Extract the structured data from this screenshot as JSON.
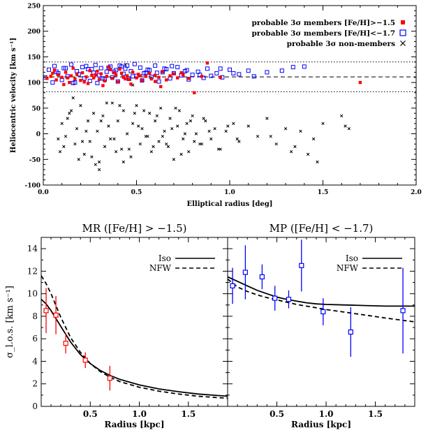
{
  "chart_data": [
    {
      "type": "scatter",
      "title": "",
      "xlabel": "Elliptical radius [deg]",
      "ylabel": "Heliocentric velocity [km s⁻¹]",
      "xlim": [
        0,
        2.0
      ],
      "ylim": [
        -100,
        250
      ],
      "xticks": [
        "0.0",
        "0.5",
        "1.0",
        "1.5",
        "2.0"
      ],
      "yticks": [
        "-100",
        "-50",
        "0",
        "50",
        "100",
        "150",
        "200",
        "250"
      ],
      "legend_position": "top-right",
      "legend": [
        {
          "label": "probable 3σ members [Fe/H]>−1.5",
          "marker": "filled-square",
          "color": "#ff0000"
        },
        {
          "label": "probable 3σ members [Fe/H]<−1.7",
          "marker": "open-square",
          "color": "#0000ff"
        },
        {
          "label": "probable 3σ non-members",
          "marker": "cross",
          "color": "#000000"
        }
      ],
      "reference_lines": [
        {
          "y": 140,
          "style": "dotted"
        },
        {
          "y": 111,
          "style": "dashed"
        },
        {
          "y": 82,
          "style": "dotted"
        }
      ],
      "series": [
        {
          "name": "probable 3σ members [Fe/H]>−1.5",
          "color": "#ff0000",
          "x": [
            0.02,
            0.04,
            0.05,
            0.07,
            0.08,
            0.1,
            0.12,
            0.14,
            0.15,
            0.17,
            0.18,
            0.2,
            0.21,
            0.23,
            0.24,
            0.26,
            0.27,
            0.29,
            0.3,
            0.31,
            0.33,
            0.34,
            0.36,
            0.37,
            0.39,
            0.4,
            0.42,
            0.43,
            0.45,
            0.46,
            0.48,
            0.5,
            0.51,
            0.53,
            0.55,
            0.57,
            0.58,
            0.6,
            0.62,
            0.64,
            0.66,
            0.68,
            0.7,
            0.72,
            0.75,
            0.78,
            0.81,
            0.85,
            0.88,
            0.95,
            0.06,
            0.11,
            0.16,
            0.22,
            0.28,
            0.32,
            0.38,
            0.44,
            0.52,
            0.6,
            0.35,
            0.25,
            0.47,
            0.13,
            0.41,
            1.7,
            0.63,
            0.74
          ],
          "y": [
            108,
            112,
            118,
            105,
            115,
            110,
            120,
            100,
            113,
            107,
            116,
            104,
            119,
            111,
            98,
            114,
            109,
            122,
            106,
            117,
            103,
            112,
            125,
            108,
            115,
            101,
            118,
            110,
            113,
            106,
            120,
            109,
            116,
            104,
            112,
            118,
            107,
            114,
            110,
            121,
            105,
            113,
            117,
            109,
            115,
            108,
            80,
            112,
            138,
            110,
            124,
            96,
            128,
            101,
            115,
            94,
            119,
            107,
            113,
            102,
            130,
            123,
            97,
            109,
            126,
            100,
            92,
            119
          ]
        },
        {
          "name": "probable 3σ members [Fe/H]<−1.7",
          "color": "#0000ff",
          "x": [
            0.01,
            0.03,
            0.05,
            0.06,
            0.08,
            0.1,
            0.11,
            0.13,
            0.15,
            0.16,
            0.18,
            0.19,
            0.21,
            0.22,
            0.24,
            0.25,
            0.27,
            0.28,
            0.3,
            0.31,
            0.33,
            0.34,
            0.36,
            0.37,
            0.39,
            0.4,
            0.41,
            0.43,
            0.44,
            0.46,
            0.47,
            0.49,
            0.5,
            0.52,
            0.53,
            0.55,
            0.56,
            0.58,
            0.6,
            0.62,
            0.64,
            0.66,
            0.68,
            0.7,
            0.72,
            0.74,
            0.76,
            0.78,
            0.8,
            0.83,
            0.86,
            0.88,
            0.9,
            0.93,
            0.96,
            1.0,
            1.05,
            1.1,
            1.13,
            1.2,
            1.28,
            1.34,
            1.4,
            0.12,
            0.23,
            0.35,
            0.45,
            0.57,
            0.65,
            0.77,
            0.84,
            0.07,
            0.29,
            0.42,
            0.54,
            0.69,
            0.95,
            1.02,
            0.32,
            0.38,
            0.48,
            0.61,
            0.17,
            0.26
          ],
          "y": [
            110,
            125,
            100,
            132,
            118,
            105,
            128,
            112,
            135,
            99,
            122,
            116,
            130,
            108,
            126,
            103,
            119,
            134,
            114,
            128,
            106,
            121,
            131,
            110,
            124,
            102,
            133,
            117,
            127,
            107,
            122,
            136,
            113,
            129,
            104,
            119,
            125,
            111,
            133,
            102,
            120,
            126,
            108,
            118,
            130,
            114,
            122,
            106,
            115,
            121,
            109,
            127,
            113,
            118,
            110,
            125,
            116,
            123,
            112,
            120,
            123,
            130,
            131,
            128,
            132,
            129,
            133,
            124,
            127,
            124,
            115,
            121,
            99,
            131,
            118,
            132,
            127,
            118,
            108,
            121,
            112,
            119,
            100,
            126
          ]
        },
        {
          "name": "probable 3σ non-members",
          "color": "#000000",
          "x": [
            0.08,
            0.09,
            0.1,
            0.12,
            0.13,
            0.15,
            0.17,
            0.18,
            0.2,
            0.22,
            0.24,
            0.25,
            0.27,
            0.29,
            0.3,
            0.32,
            0.33,
            0.35,
            0.37,
            0.38,
            0.4,
            0.42,
            0.43,
            0.45,
            0.47,
            0.48,
            0.5,
            0.52,
            0.53,
            0.55,
            0.57,
            0.58,
            0.6,
            0.62,
            0.63,
            0.65,
            0.67,
            0.68,
            0.7,
            0.72,
            0.73,
            0.75,
            0.77,
            0.78,
            0.8,
            0.82,
            0.85,
            0.87,
            0.9,
            0.92,
            0.95,
            0.98,
            1.02,
            1.05,
            1.1,
            1.15,
            1.2,
            1.25,
            1.3,
            1.35,
            1.38,
            1.42,
            1.45,
            1.5,
            1.6,
            1.62,
            1.64,
            0.44,
            0.48,
            0.11,
            0.14,
            0.26,
            0.31,
            0.36,
            0.41,
            0.46,
            0.51,
            0.56,
            0.61,
            0.66,
            0.71,
            0.76,
            0.81,
            0.86,
            0.34,
            0.39,
            0.19,
            0.23,
            0.28,
            0.54,
            0.59,
            0.64,
            0.69,
            0.74,
            0.79,
            0.84,
            0.89,
            0.94,
            0.99,
            1.04,
            0.16,
            0.21,
            0.49,
            0.43,
            1.22,
            1.33,
            1.47,
            0.3
          ],
          "y": [
            -10,
            -35,
            20,
            -5,
            30,
            45,
            -20,
            10,
            55,
            -40,
            25,
            -15,
            40,
            5,
            -55,
            35,
            -25,
            15,
            60,
            -10,
            25,
            -30,
            45,
            0,
            -45,
            20,
            55,
            -20,
            10,
            -5,
            40,
            -35,
            25,
            -15,
            50,
            5,
            -25,
            30,
            -50,
            15,
            45,
            -10,
            20,
            -35,
            35,
            0,
            -20,
            25,
            -10,
            10,
            -30,
            5,
            20,
            -15,
            15,
            -5,
            30,
            -20,
            10,
            -25,
            5,
            -40,
            -10,
            20,
            35,
            15,
            10,
            135,
            95,
            -25,
            40,
            -45,
            25,
            -10,
            55,
            -30,
            15,
            -5,
            35,
            -20,
            50,
            0,
            -15,
            30,
            60,
            -35,
            -50,
            5,
            -60,
            45,
            -25,
            -5,
            10,
            -40,
            25,
            -20,
            5,
            -30,
            15,
            -10,
            70,
            -15,
            40,
            -55,
            -5,
            -35,
            -55,
            -70
          ]
        }
      ]
    },
    {
      "type": "line",
      "title": "MR ([Fe/H] > −1.5)",
      "xlabel": "Radius [kpc]",
      "ylabel": "σ_l.o.s. [km s⁻¹]",
      "xlim": [
        0,
        1.9
      ],
      "ylim": [
        0,
        15
      ],
      "xticks": [
        "0.5",
        "1.0",
        "1.5"
      ],
      "yticks": [
        "0",
        "2",
        "4",
        "6",
        "8",
        "10",
        "12",
        "14"
      ],
      "legend": [
        {
          "label": "Iso",
          "style": "solid"
        },
        {
          "label": "NFW",
          "style": "dashed"
        }
      ],
      "legend_position": "top-right",
      "series": [
        {
          "name": "Iso",
          "style": "solid",
          "x": [
            0,
            0.05,
            0.1,
            0.2,
            0.3,
            0.4,
            0.5,
            0.6,
            0.7,
            0.8,
            1.0,
            1.2,
            1.4,
            1.6,
            1.9
          ],
          "y": [
            9.5,
            9.1,
            8.5,
            7.1,
            5.7,
            4.6,
            3.8,
            3.2,
            2.75,
            2.4,
            1.9,
            1.55,
            1.3,
            1.1,
            0.9
          ]
        },
        {
          "name": "NFW",
          "style": "dashed",
          "x": [
            0,
            0.05,
            0.1,
            0.2,
            0.3,
            0.4,
            0.5,
            0.6,
            0.7,
            0.8,
            1.0,
            1.2,
            1.4,
            1.6,
            1.9
          ],
          "y": [
            11.6,
            10.9,
            10.0,
            7.9,
            6.1,
            4.8,
            3.8,
            3.1,
            2.6,
            2.2,
            1.7,
            1.35,
            1.1,
            0.9,
            0.72
          ]
        },
        {
          "name": "data",
          "style": "points",
          "color": "#ff0000",
          "x": [
            0.05,
            0.15,
            0.25,
            0.45,
            0.7
          ],
          "y": [
            8.5,
            8.1,
            5.6,
            4.1,
            2.5
          ],
          "err": [
            2.0,
            1.7,
            0.9,
            0.7,
            1.1
          ]
        }
      ]
    },
    {
      "type": "line",
      "title": "MP ([Fe/H] < −1.7)",
      "xlabel": "Radius [kpc]",
      "ylabel": "",
      "xlim": [
        0,
        1.9
      ],
      "ylim": [
        0,
        15
      ],
      "xticks": [
        "0.5",
        "1.0",
        "1.5"
      ],
      "legend": [
        {
          "label": "Iso",
          "style": "solid"
        },
        {
          "label": "NFW",
          "style": "dashed"
        }
      ],
      "legend_position": "top-right",
      "series": [
        {
          "name": "Iso",
          "style": "solid",
          "x": [
            0,
            0.1,
            0.2,
            0.3,
            0.4,
            0.5,
            0.6,
            0.7,
            0.8,
            0.9,
            1.0,
            1.2,
            1.4,
            1.6,
            1.9
          ],
          "y": [
            11.5,
            11.1,
            10.7,
            10.3,
            10.0,
            9.7,
            9.5,
            9.35,
            9.2,
            9.1,
            9.05,
            9.0,
            8.95,
            8.9,
            8.9
          ]
        },
        {
          "name": "NFW",
          "style": "dashed",
          "x": [
            0,
            0.1,
            0.2,
            0.3,
            0.4,
            0.5,
            0.6,
            0.7,
            0.8,
            0.9,
            1.0,
            1.2,
            1.4,
            1.6,
            1.9
          ],
          "y": [
            11.3,
            10.6,
            10.2,
            9.9,
            9.65,
            9.45,
            9.25,
            9.05,
            8.9,
            8.75,
            8.6,
            8.35,
            8.1,
            7.85,
            7.5
          ]
        },
        {
          "name": "data",
          "style": "points",
          "color": "#0000ff",
          "x": [
            0.05,
            0.18,
            0.35,
            0.48,
            0.62,
            0.75,
            0.97,
            1.25,
            1.78
          ],
          "y": [
            10.7,
            11.9,
            11.5,
            9.6,
            9.5,
            12.5,
            8.4,
            6.6,
            8.5
          ],
          "err": [
            1.6,
            2.4,
            1.1,
            1.1,
            0.8,
            2.3,
            1.2,
            2.2,
            3.8
          ]
        }
      ]
    }
  ]
}
